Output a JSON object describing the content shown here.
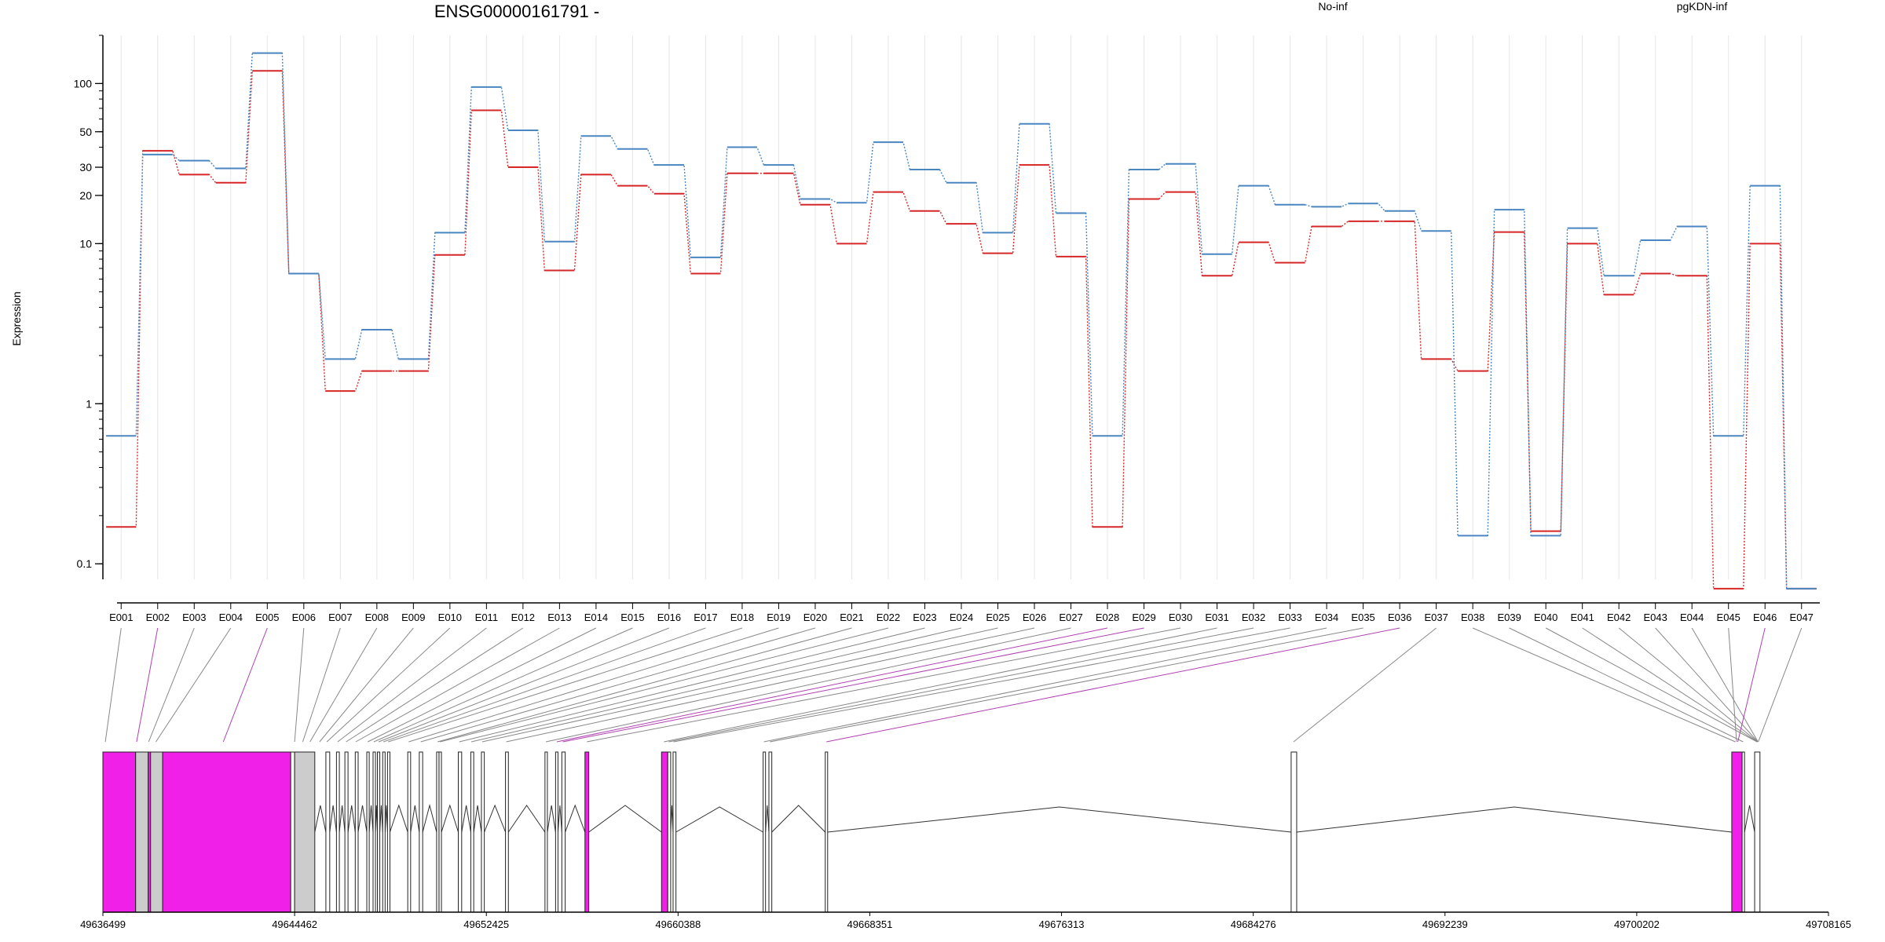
{
  "chart_data": {
    "type": "line",
    "title": "ENSG00000161791 -",
    "ylabel": "Expression",
    "xlabel": "",
    "yscale": "log",
    "ylim": [
      0.08,
      200
    ],
    "y_ticks": [
      0.1,
      1,
      10,
      20,
      30,
      50,
      100
    ],
    "grid": "vertical",
    "legend_position": "top",
    "categories": [
      "E001",
      "E002",
      "E003",
      "E004",
      "E005",
      "E006",
      "E007",
      "E008",
      "E009",
      "E010",
      "E011",
      "E012",
      "E013",
      "E014",
      "E015",
      "E016",
      "E017",
      "E018",
      "E019",
      "E020",
      "E021",
      "E022",
      "E023",
      "E024",
      "E025",
      "E026",
      "E027",
      "E028",
      "E029",
      "E030",
      "E031",
      "E032",
      "E033",
      "E034",
      "E035",
      "E036",
      "E037",
      "E038",
      "E039",
      "E040",
      "E041",
      "E042",
      "E043",
      "E044",
      "E045",
      "E046",
      "E047"
    ],
    "series": [
      {
        "name": "No-inf",
        "color": "#d62728",
        "values": [
          0.17,
          38,
          27,
          24,
          120,
          6.5,
          1.2,
          1.6,
          1.6,
          8.5,
          68,
          30,
          6.8,
          27,
          23,
          20.5,
          6.5,
          27.5,
          27.5,
          17.5,
          10,
          21,
          16,
          13.3,
          8.7,
          31,
          8.3,
          0.17,
          19,
          21,
          6.3,
          10.2,
          7.6,
          12.8,
          13.8,
          13.8,
          1.9,
          1.6,
          11.8,
          0.16,
          10,
          4.8,
          6.5,
          6.3,
          0.07,
          10,
          0.07
        ]
      },
      {
        "name": "pgKDN-inf",
        "color": "#4a86c0",
        "values": [
          0.63,
          36,
          33,
          29.5,
          155,
          6.5,
          1.9,
          2.9,
          1.9,
          11.7,
          95,
          51,
          10.3,
          47,
          39,
          31,
          8.2,
          40,
          31,
          19,
          18,
          43,
          29,
          24,
          11.7,
          56,
          15.5,
          0.63,
          29,
          31.5,
          8.6,
          23,
          17.5,
          17,
          17.8,
          16,
          12,
          0.15,
          16.3,
          0.15,
          12.5,
          6.3,
          10.5,
          12.8,
          0.63,
          23,
          0.07
        ]
      }
    ]
  },
  "gene_model": {
    "coord_ticks": [
      "49636499",
      "49644462",
      "49652425",
      "49660388",
      "49668351",
      "49676313",
      "49684276",
      "49692239",
      "49700202",
      "49708165"
    ],
    "highlight_color": "#f020e8",
    "exon_fill": "#cccccc"
  }
}
